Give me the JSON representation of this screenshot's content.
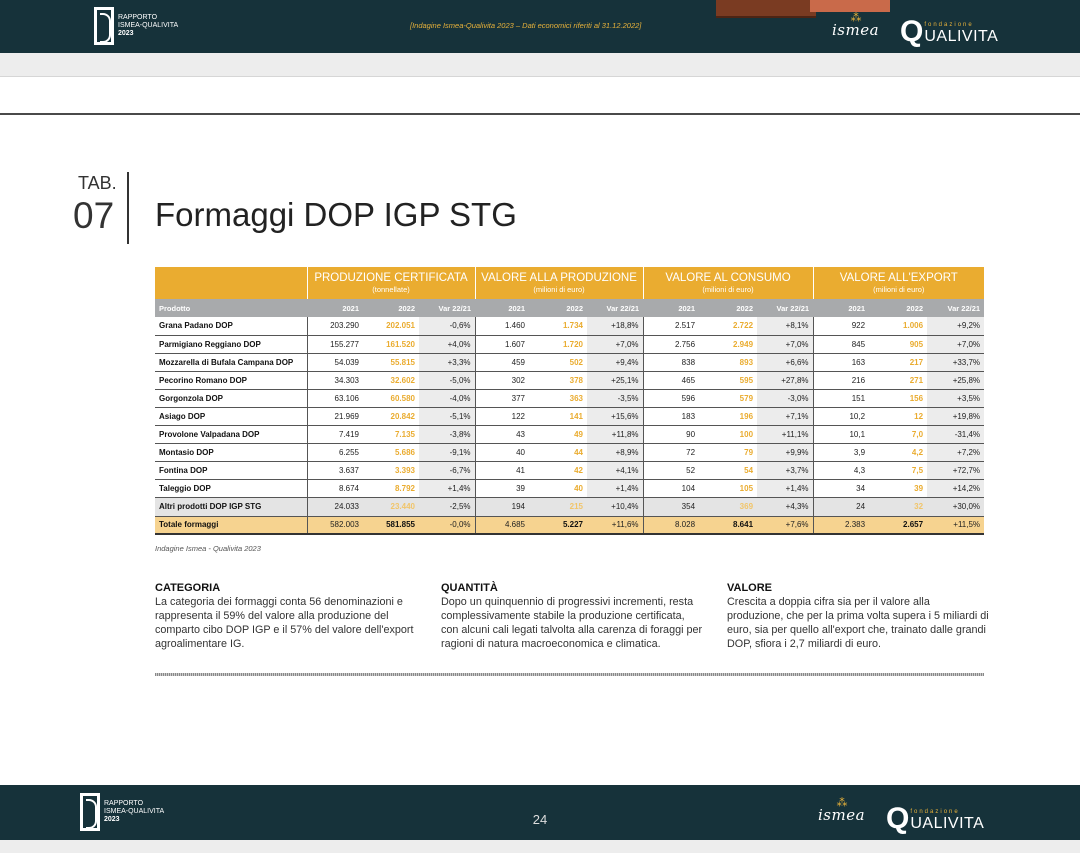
{
  "header": {
    "report_logo": {
      "line1": "RAPPORTO",
      "line2": "ISMEA-QUALIVITA",
      "year": "2023"
    },
    "source_line": "[Indagine Ismea-Qualivita 2023 – Dati economici riferiti al 31.12.2022]",
    "ismea_logo": "ismea",
    "qualivita_logo": {
      "small": "fondazione",
      "q": "Q",
      "word": "UALIVITA"
    }
  },
  "title": {
    "tab_label": "TAB.",
    "tab_number": "07",
    "text": "Formaggi DOP IGP STG"
  },
  "table": {
    "product_header": "Prodotto",
    "groups": [
      {
        "title": "PRODUZIONE CERTIFICATA",
        "subtitle": "(tonnellate)"
      },
      {
        "title": "VALORE ALLA PRODUZIONE",
        "subtitle": "(milioni di euro)"
      },
      {
        "title": "VALORE AL CONSUMO",
        "subtitle": "(milioni di euro)"
      },
      {
        "title": "VALORE ALL'EXPORT",
        "subtitle": "(milioni di euro)"
      }
    ],
    "sub_headers": [
      "2021",
      "2022",
      "Var 22/21"
    ],
    "rows": [
      {
        "name": "Grana Padano DOP",
        "v": [
          "203.290",
          "202.051",
          "-0,6%",
          "1.460",
          "1.734",
          "+18,8%",
          "2.517",
          "2.722",
          "+8,1%",
          "922",
          "1.006",
          "+9,2%"
        ]
      },
      {
        "name": "Parmigiano Reggiano DOP",
        "v": [
          "155.277",
          "161.520",
          "+4,0%",
          "1.607",
          "1.720",
          "+7,0%",
          "2.756",
          "2.949",
          "+7,0%",
          "845",
          "905",
          "+7,0%"
        ]
      },
      {
        "name": "Mozzarella di Bufala Campana DOP",
        "v": [
          "54.039",
          "55.815",
          "+3,3%",
          "459",
          "502",
          "+9,4%",
          "838",
          "893",
          "+6,6%",
          "163",
          "217",
          "+33,7%"
        ]
      },
      {
        "name": "Pecorino Romano DOP",
        "v": [
          "34.303",
          "32.602",
          "-5,0%",
          "302",
          "378",
          "+25,1%",
          "465",
          "595",
          "+27,8%",
          "216",
          "271",
          "+25,8%"
        ]
      },
      {
        "name": "Gorgonzola DOP",
        "v": [
          "63.106",
          "60.580",
          "-4,0%",
          "377",
          "363",
          "-3,5%",
          "596",
          "579",
          "-3,0%",
          "151",
          "156",
          "+3,5%"
        ]
      },
      {
        "name": "Asiago DOP",
        "v": [
          "21.969",
          "20.842",
          "-5,1%",
          "122",
          "141",
          "+15,6%",
          "183",
          "196",
          "+7,1%",
          "10,2",
          "12",
          "+19,8%"
        ]
      },
      {
        "name": "Provolone Valpadana DOP",
        "v": [
          "7.419",
          "7.135",
          "-3,8%",
          "43",
          "49",
          "+11,8%",
          "90",
          "100",
          "+11,1%",
          "10,1",
          "7,0",
          "-31,4%"
        ]
      },
      {
        "name": "Montasio DOP",
        "v": [
          "6.255",
          "5.686",
          "-9,1%",
          "40",
          "44",
          "+8,9%",
          "72",
          "79",
          "+9,9%",
          "3,9",
          "4,2",
          "+7,2%"
        ]
      },
      {
        "name": "Fontina DOP",
        "v": [
          "3.637",
          "3.393",
          "-6,7%",
          "41",
          "42",
          "+4,1%",
          "52",
          "54",
          "+3,7%",
          "4,3",
          "7,5",
          "+72,7%"
        ]
      },
      {
        "name": "Taleggio DOP",
        "v": [
          "8.674",
          "8.792",
          "+1,4%",
          "39",
          "40",
          "+1,4%",
          "104",
          "105",
          "+1,4%",
          "34",
          "39",
          "+14,2%"
        ]
      },
      {
        "name": "Altri prodotti DOP IGP STG",
        "v": [
          "24.033",
          "23.440",
          "-2,5%",
          "194",
          "215",
          "+10,4%",
          "354",
          "369",
          "+4,3%",
          "24",
          "32",
          "+30,0%"
        ]
      },
      {
        "name": "Totale formaggi",
        "v": [
          "582.003",
          "581.855",
          "-0,0%",
          "4.685",
          "5.227",
          "+11,6%",
          "8.028",
          "8.641",
          "+7,6%",
          "2.383",
          "2.657",
          "+11,5%"
        ]
      }
    ],
    "source": "Indagine Ismea - Qualivita 2023"
  },
  "notes": [
    {
      "title": "CATEGORIA",
      "text": "La categoria dei formaggi conta 56 denominazioni e rappresenta il 59% del valore alla produzione del comparto cibo DOP IGP e il 57% del valore dell'export agroalimentare IG."
    },
    {
      "title": "QUANTITÀ",
      "text": "Dopo un quinquennio di progressivi incrementi, resta complessivamente stabile la produzione certificata, con alcuni cali legati talvolta alla carenza di foraggi per ragioni di natura macroeconomica e climatica."
    },
    {
      "title": "VALORE",
      "text": "Crescita a doppia cifra sia per il valore alla produzione, che per la prima volta supera i 5 miliardi di euro, sia per quello all'export che, trainato dalle grandi DOP, sfiora i 2,7 miliardi di euro."
    }
  ],
  "footer": {
    "page_number": "24"
  },
  "colors": {
    "dark_bar": "#16323a",
    "accent_gold": "#eaac30",
    "header_gray": "#a8aaac",
    "total_row": "#f6d390"
  }
}
